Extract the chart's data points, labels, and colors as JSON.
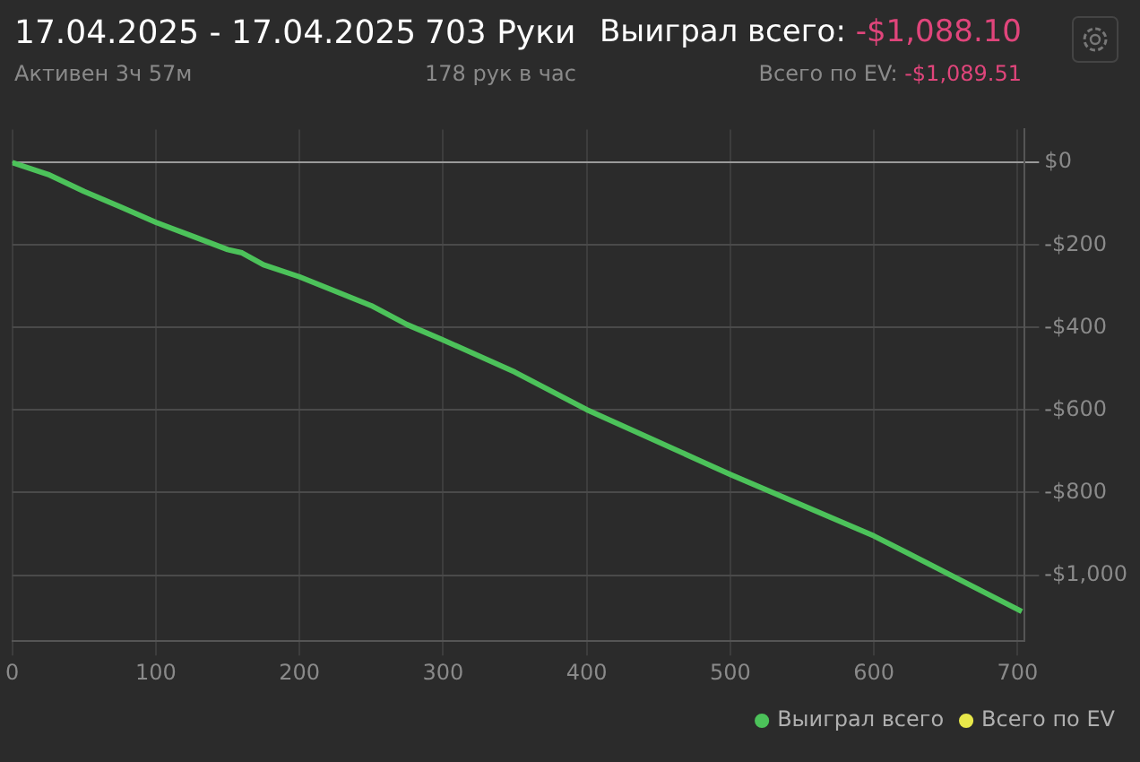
{
  "chart_data": {
    "type": "line",
    "title": "17.04.2025 - 17.04.2025",
    "subtitle": "Активен 3ч 57м",
    "annotations": [
      "703 Руки",
      "178 рук в час",
      "Выиграл всего:",
      "-$1,088.10",
      "Всего по EV:",
      "-$1,089.51"
    ],
    "x": [
      0,
      25,
      50,
      75,
      100,
      125,
      150,
      160,
      175,
      200,
      250,
      275,
      300,
      350,
      400,
      500,
      600,
      703
    ],
    "series": [
      {
        "name": "Выиграл всего",
        "color": "#4cc25a",
        "values": [
          0,
          -29,
          -70,
          -107,
          -145,
          -178,
          -211,
          -219,
          -248,
          -277,
          -347,
          -393,
          -430,
          -508,
          -599,
          -756,
          -905,
          -1088
        ]
      },
      {
        "name": "Всего по EV",
        "color": "#e8e84a",
        "values": [
          null,
          null,
          null,
          null,
          null,
          null,
          null,
          null,
          null,
          null,
          null,
          null,
          null,
          null,
          null,
          null,
          null,
          null
        ]
      }
    ],
    "xlim": [
      0,
      705
    ],
    "xticks": [
      0,
      100,
      200,
      300,
      400,
      500,
      600,
      700
    ],
    "ylim": [
      -1160,
      80
    ],
    "yticks": [
      {
        "value": 0,
        "label": "$0"
      },
      {
        "value": -200,
        "label": "-$200"
      },
      {
        "value": -400,
        "label": "-$400"
      },
      {
        "value": -600,
        "label": "-$600"
      },
      {
        "value": -800,
        "label": "-$800"
      },
      {
        "value": -1000,
        "label": "-$1,000"
      }
    ],
    "grid": true,
    "legend": "bottom right",
    "marker": "none",
    "line_style": "solid"
  }
}
